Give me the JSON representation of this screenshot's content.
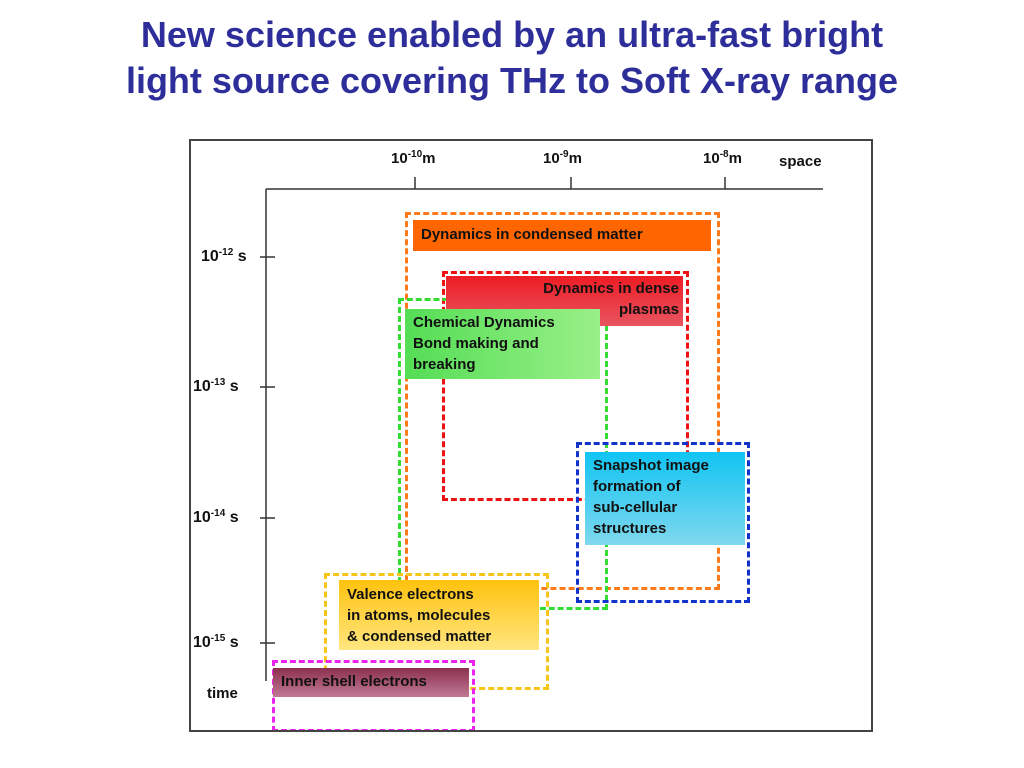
{
  "title": {
    "line1": "New science enabled by an ultra-fast bright",
    "line2": "light source covering THz to Soft X-ray range"
  },
  "axes": {
    "space_label": "space",
    "time_label": "time",
    "space_ticks": [
      {
        "base": "10",
        "exp": "-10",
        "unit": "m"
      },
      {
        "base": "10",
        "exp": "-9",
        "unit": "m"
      },
      {
        "base": "10",
        "exp": "-8",
        "unit": "m"
      }
    ],
    "time_ticks": [
      {
        "base": "10",
        "exp": "-12",
        "unit": "s"
      },
      {
        "base": "10",
        "exp": "-13",
        "unit": "s"
      },
      {
        "base": "10",
        "exp": "-14",
        "unit": "s"
      },
      {
        "base": "10",
        "exp": "-15",
        "unit": "s"
      }
    ]
  },
  "regions": {
    "condensed": {
      "lines": [
        "Dynamics in condensed matter"
      ],
      "border": "#ff7a1a",
      "fill": "#ff6600"
    },
    "plasmas": {
      "lines": [
        "Dynamics in dense",
        "plasmas"
      ],
      "border": "#ee1111",
      "fill": "#e8202a"
    },
    "chemical": {
      "lines": [
        "Chemical Dynamics",
        "Bond making and",
        "breaking"
      ],
      "border": "#33dd33",
      "fill": "#77ee66"
    },
    "snapshot": {
      "lines": [
        "Snapshot image",
        "formation of",
        "sub-cellular",
        "structures"
      ],
      "border": "#1133cc",
      "fill": "#22ccf5"
    },
    "valence": {
      "lines": [
        "Valence electrons",
        "in atoms, molecules",
        "& condensed matter"
      ],
      "border": "#f5c518",
      "fill": "#ffcc22"
    },
    "inner": {
      "lines": [
        "Inner shell electrons"
      ],
      "border": "#ee22ee",
      "fill": "#a0506a"
    }
  }
}
